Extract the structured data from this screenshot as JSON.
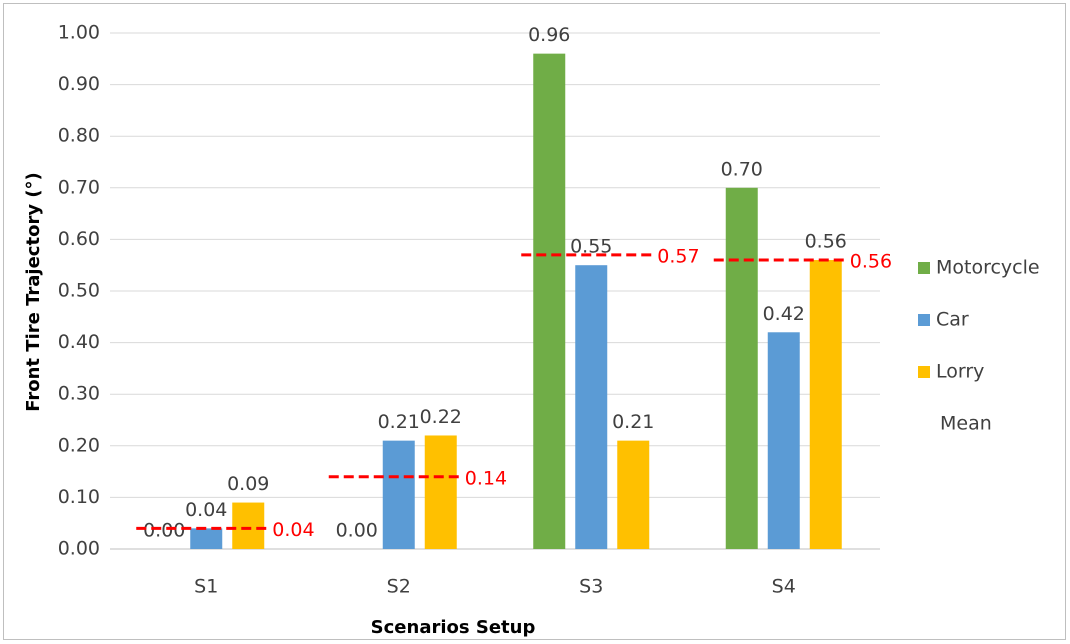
{
  "chart_data": {
    "type": "bar",
    "x_label": "Scenarios Setup",
    "y_label": "Front Tire Trajectory (°)",
    "categories": [
      "S1",
      "S2",
      "S3",
      "S4"
    ],
    "series": [
      {
        "name": "Motorcycle",
        "color": "#70ad47",
        "values": [
          0.0,
          0.0,
          0.96,
          0.7
        ],
        "value_labels": [
          "0.00",
          "0.00",
          "0.96",
          "0.70"
        ]
      },
      {
        "name": "Car",
        "color": "#5b9bd5",
        "values": [
          0.04,
          0.21,
          0.55,
          0.42
        ],
        "value_labels": [
          "0.04",
          "0.21",
          "0.55",
          "0.42"
        ]
      },
      {
        "name": "Lorry",
        "color": "#ffc000",
        "values": [
          0.09,
          0.22,
          0.21,
          0.56
        ],
        "value_labels": [
          "0.09",
          "0.22",
          "0.21",
          "0.56"
        ]
      }
    ],
    "mean": {
      "name": "Mean",
      "color": "#ff0000",
      "values": [
        0.04,
        0.14,
        0.57,
        0.56
      ],
      "value_labels": [
        "0.04",
        "0.14",
        "0.57",
        "0.56"
      ]
    },
    "ylim": [
      0,
      1
    ],
    "yticks": [
      {
        "value": 0,
        "label": "0.00"
      },
      {
        "value": 0.1,
        "label": "0.10"
      },
      {
        "value": 0.2,
        "label": "0.20"
      },
      {
        "value": 0.3,
        "label": "0.30"
      },
      {
        "value": 0.4,
        "label": "0.40"
      },
      {
        "value": 0.5,
        "label": "0.50"
      },
      {
        "value": 0.6,
        "label": "0.60"
      },
      {
        "value": 0.7,
        "label": "0.70"
      },
      {
        "value": 0.8,
        "label": "0.80"
      },
      {
        "value": 0.9,
        "label": "0.90"
      },
      {
        "value": 1,
        "label": "1.00"
      }
    ],
    "grid": true,
    "legend": "right"
  }
}
